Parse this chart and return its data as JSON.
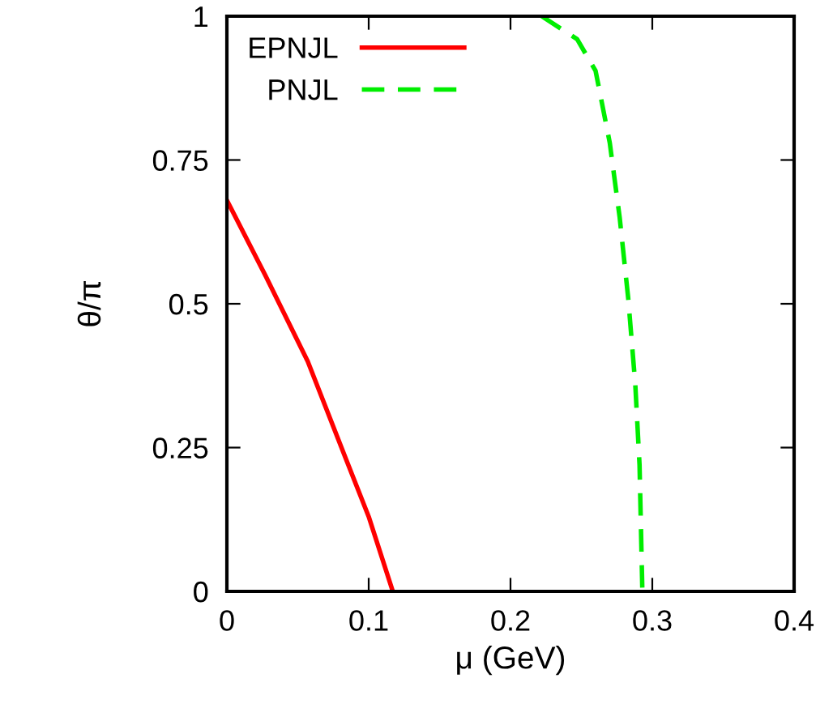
{
  "chart_data": {
    "type": "line",
    "xlabel": "μ (GeV)",
    "ylabel": "θ/π",
    "xlim": [
      0,
      0.4
    ],
    "ylim": [
      0,
      1
    ],
    "xticks": [
      0,
      0.1,
      0.2,
      0.3,
      0.4
    ],
    "yticks": [
      0,
      0.25,
      0.5,
      0.75,
      1
    ],
    "legend": "top left",
    "grid": false,
    "series": [
      {
        "name": "EPNJL",
        "color": "#ff0000",
        "line_style": "solid",
        "x": [
          0,
          0.027,
          0.057,
          0.084,
          0.1,
          0.117
        ],
        "values": [
          0.68,
          0.55,
          0.4,
          0.23,
          0.13,
          0
        ]
      },
      {
        "name": "PNJL",
        "color": "#00ee00",
        "line_style": "dashed",
        "x": [
          0.222,
          0.247,
          0.26,
          0.27,
          0.277,
          0.283,
          0.288,
          0.291,
          0.293
        ],
        "values": [
          1,
          0.96,
          0.905,
          0.78,
          0.65,
          0.51,
          0.36,
          0.22,
          0
        ]
      }
    ]
  }
}
